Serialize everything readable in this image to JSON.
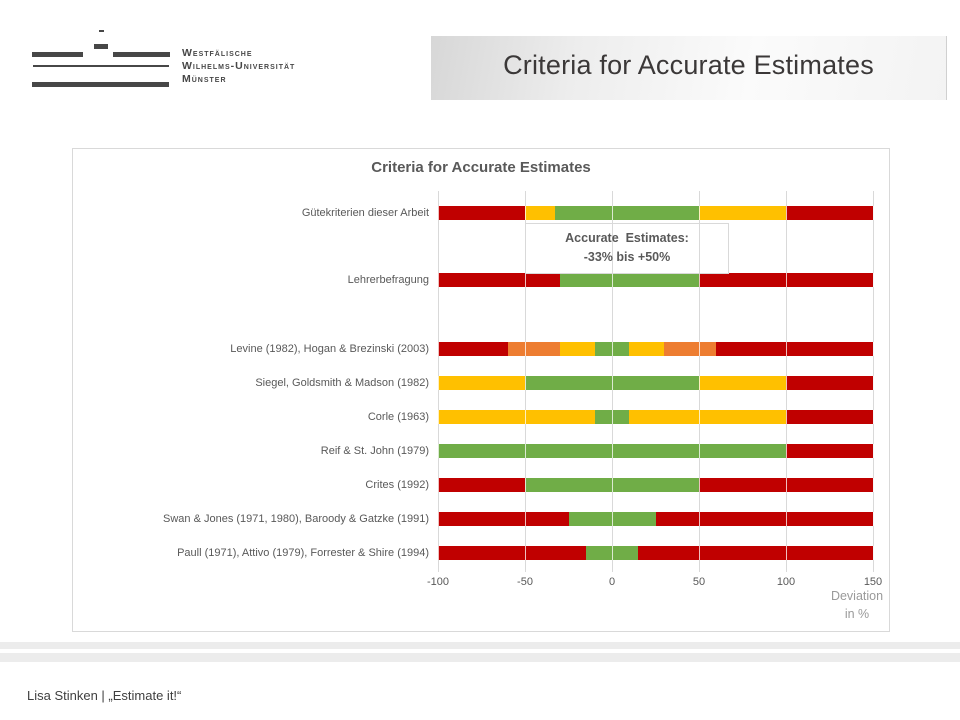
{
  "slide": {
    "title": "Criteria for Accurate Estimates",
    "footer": "Lisa Stinken | „Estimate it!“",
    "logo": {
      "lines": [
        "Westfälische",
        "Wilhelms-Universität",
        "Münster"
      ]
    }
  },
  "chart_data": {
    "type": "bar",
    "orientation": "horizontal",
    "stacked": true,
    "title": "Criteria for Accurate Estimates",
    "xlabel": "Deviation in %",
    "xlabel_lines": [
      "Deviation",
      "in %"
    ],
    "xlim": [
      -100,
      150
    ],
    "xticks": [
      -100,
      -50,
      0,
      50,
      100,
      150
    ],
    "grid": true,
    "annotation": {
      "line1": "Accurate  Estimates:",
      "line2": "-33% bis +50%"
    },
    "colors": {
      "red": "#C00000",
      "yellow": "#FFC000",
      "orange": "#ED7D31",
      "green": "#70AD47"
    },
    "rows": [
      {
        "label": "Gütekriterien dieser Arbeit",
        "segments": [
          [
            -100,
            -50,
            "red"
          ],
          [
            -50,
            -33,
            "yellow"
          ],
          [
            -33,
            50,
            "green"
          ],
          [
            50,
            100,
            "yellow"
          ],
          [
            100,
            150,
            "red"
          ]
        ]
      },
      {
        "label": "Lehrerbefragung",
        "segments": [
          [
            -100,
            -30,
            "red"
          ],
          [
            -30,
            50,
            "green"
          ],
          [
            50,
            150,
            "red"
          ]
        ]
      },
      {
        "label": "Levine (1982), Hogan & Brezinski (2003)",
        "segments": [
          [
            -100,
            -60,
            "red"
          ],
          [
            -60,
            -30,
            "orange"
          ],
          [
            -30,
            -10,
            "yellow"
          ],
          [
            -10,
            10,
            "green"
          ],
          [
            10,
            30,
            "yellow"
          ],
          [
            30,
            60,
            "orange"
          ],
          [
            60,
            150,
            "red"
          ]
        ]
      },
      {
        "label": "Siegel, Goldsmith & Madson (1982)",
        "segments": [
          [
            -100,
            -50,
            "yellow"
          ],
          [
            -50,
            50,
            "green"
          ],
          [
            50,
            100,
            "yellow"
          ],
          [
            100,
            150,
            "red"
          ]
        ]
      },
      {
        "label": "Corle (1963)",
        "segments": [
          [
            -100,
            -10,
            "yellow"
          ],
          [
            -10,
            10,
            "green"
          ],
          [
            10,
            100,
            "yellow"
          ],
          [
            100,
            150,
            "red"
          ]
        ]
      },
      {
        "label": "Reif & St. John (1979)",
        "segments": [
          [
            -100,
            100,
            "green"
          ],
          [
            100,
            150,
            "red"
          ]
        ]
      },
      {
        "label": "Crites (1992)",
        "segments": [
          [
            -100,
            -50,
            "red"
          ],
          [
            -50,
            50,
            "green"
          ],
          [
            50,
            150,
            "red"
          ]
        ]
      },
      {
        "label": "Swan & Jones (1971, 1980), Baroody & Gatzke (1991)",
        "segments": [
          [
            -100,
            -25,
            "red"
          ],
          [
            -25,
            25,
            "green"
          ],
          [
            25,
            150,
            "red"
          ]
        ]
      },
      {
        "label": "Paull (1971), Attivo (1979), Forrester & Shire (1994)",
        "segments": [
          [
            -100,
            -15,
            "red"
          ],
          [
            -15,
            15,
            "green"
          ],
          [
            15,
            150,
            "red"
          ]
        ]
      }
    ]
  }
}
